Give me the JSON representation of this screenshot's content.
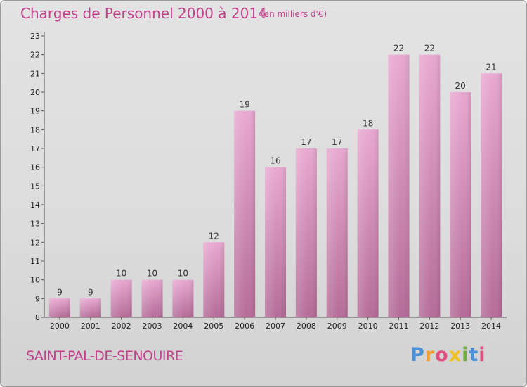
{
  "chart_data": {
    "type": "bar",
    "title": "Charges de Personnel 2000 à 2014",
    "subtitle": "(en milliers d'€)",
    "categories": [
      "2000",
      "2001",
      "2002",
      "2003",
      "2004",
      "2005",
      "2006",
      "2007",
      "2008",
      "2009",
      "2010",
      "2011",
      "2012",
      "2013",
      "2014"
    ],
    "values": [
      9,
      9,
      10,
      10,
      10,
      12,
      19,
      16,
      17,
      17,
      18,
      22,
      22,
      20,
      21
    ],
    "ylim": [
      8,
      23
    ],
    "yticks": [
      8,
      9,
      10,
      11,
      12,
      13,
      14,
      15,
      16,
      17,
      18,
      19,
      20,
      21,
      22,
      23
    ],
    "grid": false,
    "bar_color": "#d98fbb",
    "xlabel": "",
    "ylabel": ""
  },
  "commune": "SAINT-PAL-DE-SENOUIRE",
  "logo": {
    "letters": [
      "P",
      "r",
      "o",
      "x",
      "i",
      "t",
      "i"
    ],
    "colors": [
      "#4a90d9",
      "#f0a030",
      "#e05080",
      "#f0c020",
      "#70b040",
      "#4a90d9",
      "#e05080"
    ]
  },
  "title_color": "#c0408a"
}
